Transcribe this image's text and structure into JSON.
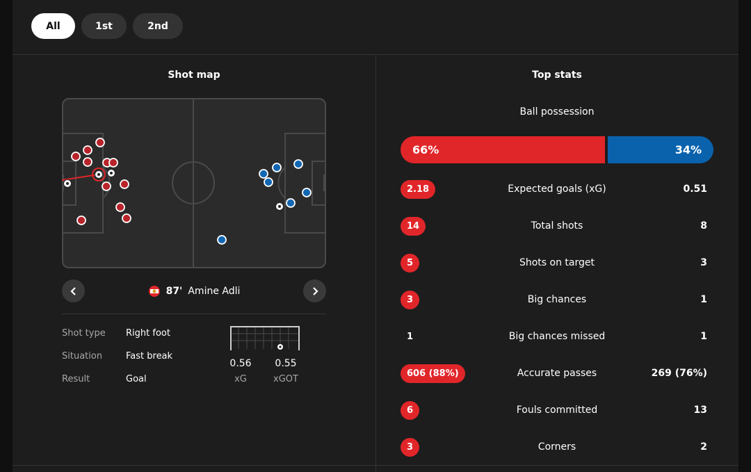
{
  "tabs": [
    {
      "label": "All",
      "active": true
    },
    {
      "label": "1st",
      "active": false
    },
    {
      "label": "2nd",
      "active": false
    }
  ],
  "shot_map": {
    "title": "Shot map",
    "selected_shot": {
      "minute": "87'",
      "player": "Amine Adli"
    },
    "details": [
      {
        "key": "Shot type",
        "value": "Right foot"
      },
      {
        "key": "Situation",
        "value": "Fast break"
      },
      {
        "key": "Result",
        "value": "Goal"
      }
    ],
    "xg": {
      "value": "0.56",
      "label": "xG"
    },
    "xgot": {
      "value": "0.55",
      "label": "xGOT"
    },
    "colors": {
      "home": "#b8242a",
      "away": "#1267b3"
    }
  },
  "top_stats": {
    "title": "Top stats",
    "possession": {
      "label": "Ball possession",
      "home": "66%",
      "away": "34%",
      "home_value": 66,
      "away_value": 34
    },
    "rows": [
      {
        "label": "Expected goals (xG)",
        "home": "2.18",
        "away": "0.51",
        "home_highlight": true
      },
      {
        "label": "Total shots",
        "home": "14",
        "away": "8",
        "home_highlight": true
      },
      {
        "label": "Shots on target",
        "home": "5",
        "away": "3",
        "home_highlight": true
      },
      {
        "label": "Big chances",
        "home": "3",
        "away": "1",
        "home_highlight": true
      },
      {
        "label": "Big chances missed",
        "home": "1",
        "away": "1",
        "home_highlight": false
      },
      {
        "label": "Accurate passes",
        "home": "606 (88%)",
        "away": "269 (76%)",
        "home_highlight": true
      },
      {
        "label": "Fouls committed",
        "home": "6",
        "away": "13",
        "home_highlight": true
      },
      {
        "label": "Corners",
        "home": "3",
        "away": "2",
        "home_highlight": true
      }
    ],
    "colors": {
      "home": "#e1262a",
      "away": "#0a62ad"
    }
  }
}
